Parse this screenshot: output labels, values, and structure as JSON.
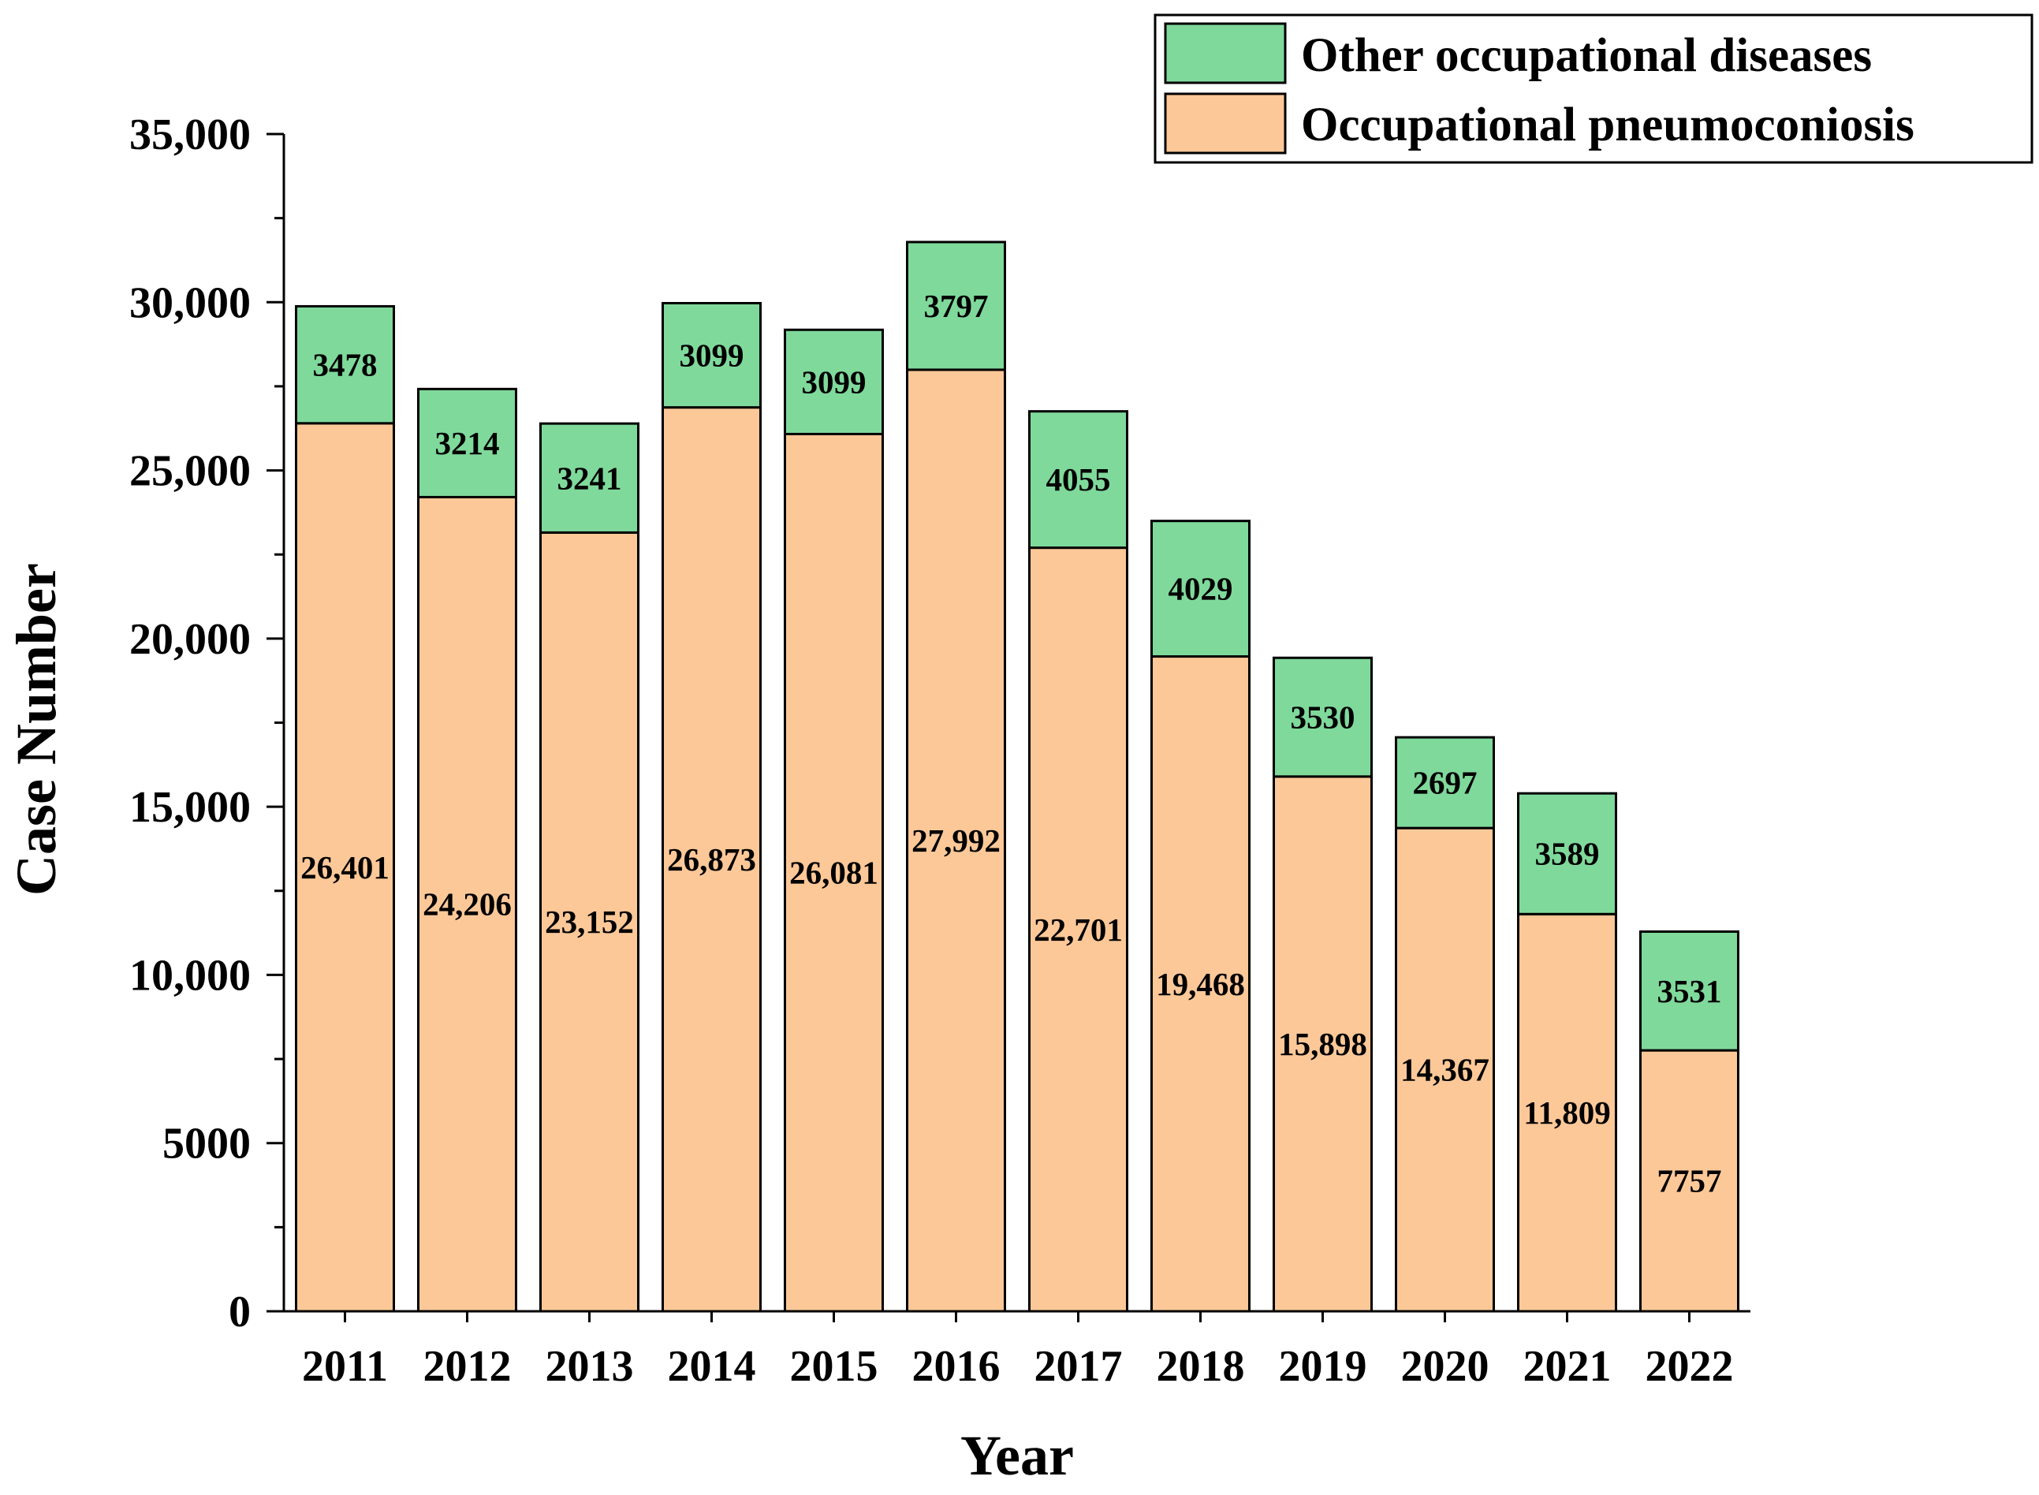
{
  "chart_data": {
    "type": "bar",
    "stacked": true,
    "title": "",
    "xlabel": "Year",
    "ylabel": "Case Number",
    "ylim": [
      0,
      35000
    ],
    "yticks": [
      0,
      5000,
      10000,
      15000,
      20000,
      25000,
      30000,
      35000
    ],
    "ytick_labels": [
      "0",
      "5000",
      "10,000",
      "15,000",
      "20,000",
      "25,000",
      "30,000",
      "35,000"
    ],
    "categories": [
      "2011",
      "2012",
      "2013",
      "2014",
      "2015",
      "2016",
      "2017",
      "2018",
      "2019",
      "2020",
      "2021",
      "2022"
    ],
    "series": [
      {
        "name": "Occupational pneumoconiosis",
        "color": "#FDC898",
        "values": [
          26401,
          24206,
          23152,
          26873,
          26081,
          27992,
          22701,
          19468,
          15898,
          14367,
          11809,
          7757
        ],
        "labels": [
          "26,401",
          "24,206",
          "23,152",
          "26,873",
          "26,081",
          "27,992",
          "22,701",
          "19,468",
          "15,898",
          "14,367",
          "11,809",
          "7757"
        ]
      },
      {
        "name": "Other occupational diseases",
        "color": "#7FD99B",
        "values": [
          3478,
          3214,
          3241,
          3099,
          3099,
          3797,
          4055,
          4029,
          3530,
          2697,
          3589,
          3531
        ],
        "labels": [
          "3478",
          "3214",
          "3241",
          "3099",
          "3099",
          "3797",
          "4055",
          "4029",
          "3530",
          "2697",
          "3589",
          "3531"
        ]
      }
    ],
    "legend": {
      "position": "top-right",
      "order": [
        "Other occupational diseases",
        "Occupational pneumoconiosis"
      ]
    },
    "grid": false
  }
}
